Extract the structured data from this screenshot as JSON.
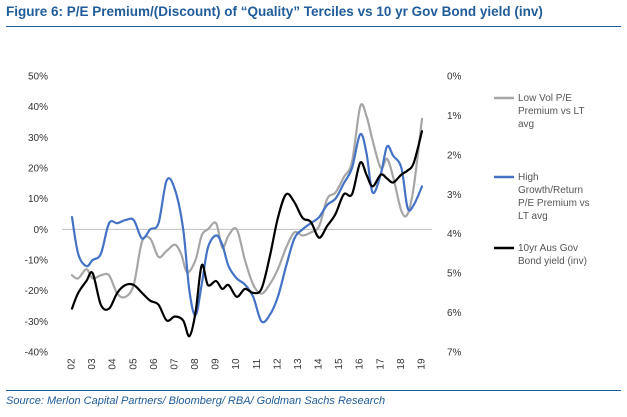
{
  "header": {
    "title": "Figure 6: P/E Premium/(Discount) of “Quality” Terciles vs 10 yr Gov Bond yield (inv)"
  },
  "footer": {
    "source": "Source: Merlon Capital Partners/ Bloomberg/ RBA/ Goldman Sachs Research"
  },
  "chart_data": {
    "type": "line",
    "x_ticks": [
      "02",
      "03",
      "04",
      "05",
      "06",
      "07",
      "08",
      "09",
      "10",
      "11",
      "12",
      "13",
      "14",
      "15",
      "16",
      "17",
      "18",
      "19"
    ],
    "y_left": {
      "range": [
        -0.4,
        0.5
      ],
      "ticks": [
        "50%",
        "40%",
        "30%",
        "20%",
        "10%",
        "0%",
        "-10%",
        "-20%",
        "-30%",
        "-40%"
      ]
    },
    "y_right": {
      "range": [
        0,
        7
      ],
      "inverted": true,
      "ticks": [
        "0%",
        "1%",
        "2%",
        "3%",
        "4%",
        "5%",
        "6%",
        "7%"
      ]
    },
    "grid": false,
    "legend_position": "right",
    "series": [
      {
        "name": "Low Vol P/E Premium vs LT avg",
        "legend_lines": [
          "Low Vol P/E",
          "Premium vs LT",
          "avg"
        ],
        "color": "#a6a6a6",
        "axis": "left",
        "x": [
          2.0,
          2.3,
          2.7,
          3.0,
          3.4,
          3.8,
          4.2,
          4.6,
          5.0,
          5.4,
          5.8,
          6.2,
          6.6,
          7.0,
          7.3,
          7.6,
          8.0,
          8.3,
          8.6,
          9.0,
          9.3,
          9.6,
          10.0,
          10.4,
          10.8,
          11.2,
          11.6,
          12.0,
          12.4,
          12.8,
          13.2,
          13.6,
          14.0,
          14.4,
          14.8,
          15.2,
          15.6,
          16.0,
          16.3,
          16.6,
          17.0,
          17.3,
          17.6,
          18.0,
          18.3,
          18.6,
          19.0
        ],
        "y": [
          -0.15,
          -0.16,
          -0.13,
          -0.16,
          -0.15,
          -0.15,
          -0.21,
          -0.22,
          -0.18,
          -0.04,
          -0.03,
          -0.09,
          -0.07,
          -0.05,
          -0.08,
          -0.14,
          -0.1,
          -0.02,
          0.0,
          0.02,
          -0.06,
          -0.02,
          0.0,
          -0.1,
          -0.18,
          -0.21,
          -0.18,
          -0.13,
          -0.06,
          -0.01,
          -0.02,
          -0.01,
          0.01,
          0.1,
          0.12,
          0.17,
          0.22,
          0.4,
          0.37,
          0.29,
          0.2,
          0.23,
          0.17,
          0.06,
          0.05,
          0.14,
          0.36
        ]
      },
      {
        "name": "High Growth/Return P/E Premium vs LT avg",
        "legend_lines": [
          "High",
          "Growth/Return",
          "P/E Premium vs",
          "LT avg"
        ],
        "color": "#4472c4",
        "axis": "left",
        "x": [
          2.0,
          2.3,
          2.7,
          3.0,
          3.4,
          3.8,
          4.2,
          4.6,
          5.0,
          5.4,
          5.8,
          6.2,
          6.6,
          7.0,
          7.4,
          7.7,
          8.0,
          8.3,
          8.6,
          9.0,
          9.3,
          9.6,
          10.0,
          10.4,
          10.8,
          11.2,
          11.6,
          12.0,
          12.4,
          12.8,
          13.2,
          13.6,
          14.0,
          14.4,
          14.8,
          15.2,
          15.6,
          16.0,
          16.3,
          16.6,
          17.0,
          17.3,
          17.6,
          18.0,
          18.3,
          18.6,
          19.0
        ],
        "y": [
          0.04,
          -0.08,
          -0.12,
          -0.1,
          -0.08,
          0.02,
          0.02,
          0.03,
          0.03,
          -0.03,
          0.0,
          0.02,
          0.16,
          0.13,
          0.0,
          -0.2,
          -0.28,
          -0.18,
          -0.06,
          -0.02,
          -0.05,
          -0.12,
          -0.16,
          -0.18,
          -0.22,
          -0.3,
          -0.28,
          -0.22,
          -0.12,
          -0.03,
          0.0,
          0.02,
          0.04,
          0.08,
          0.1,
          0.15,
          0.2,
          0.31,
          0.25,
          0.12,
          0.18,
          0.27,
          0.24,
          0.2,
          0.07,
          0.08,
          0.14
        ]
      },
      {
        "name": "10yr Aus Gov Bond yield (inv)",
        "legend_lines": [
          "10yr Aus Gov",
          "Bond yield (inv)"
        ],
        "color": "#000000",
        "axis": "right",
        "x": [
          2.0,
          2.3,
          2.7,
          3.0,
          3.4,
          3.8,
          4.2,
          4.6,
          5.0,
          5.4,
          5.8,
          6.2,
          6.6,
          7.0,
          7.4,
          7.7,
          8.0,
          8.3,
          8.6,
          9.0,
          9.3,
          9.6,
          10.0,
          10.4,
          10.8,
          11.2,
          11.6,
          12.0,
          12.4,
          12.8,
          13.2,
          13.6,
          14.0,
          14.4,
          14.8,
          15.2,
          15.6,
          16.0,
          16.3,
          16.6,
          17.0,
          17.3,
          17.6,
          18.0,
          18.3,
          18.6,
          19.0
        ],
        "y": [
          5.9,
          5.5,
          5.2,
          5.0,
          5.8,
          5.9,
          5.5,
          5.3,
          5.3,
          5.5,
          5.7,
          5.8,
          6.2,
          6.1,
          6.2,
          6.6,
          6.0,
          4.8,
          5.3,
          5.2,
          5.4,
          5.3,
          5.6,
          5.4,
          5.5,
          5.4,
          4.6,
          3.6,
          3.0,
          3.2,
          3.6,
          3.7,
          4.1,
          3.8,
          3.5,
          3.0,
          3.0,
          2.2,
          2.5,
          2.8,
          2.5,
          2.6,
          2.7,
          2.5,
          2.4,
          2.2,
          1.4
        ]
      }
    ]
  }
}
